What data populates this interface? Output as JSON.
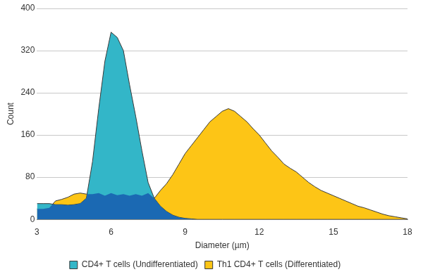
{
  "chart_data": {
    "type": "area",
    "x_label": "Diameter (µm)",
    "y_label": "Count",
    "x": [
      3,
      3.25,
      3.5,
      3.75,
      4,
      4.25,
      4.5,
      4.75,
      5,
      5.25,
      5.5,
      5.75,
      6,
      6.25,
      6.5,
      6.75,
      7,
      7.25,
      7.5,
      7.75,
      8,
      8.25,
      8.5,
      8.75,
      9,
      9.25,
      9.5,
      9.75,
      10,
      10.25,
      10.5,
      10.75,
      11,
      11.25,
      11.5,
      11.75,
      12,
      12.25,
      12.5,
      12.75,
      13,
      13.25,
      13.5,
      13.75,
      14,
      14.25,
      14.5,
      14.75,
      15,
      15.25,
      15.5,
      15.75,
      16,
      16.25,
      16.5,
      16.75,
      17,
      17.25,
      17.5,
      17.75,
      18
    ],
    "series": [
      {
        "name": "CD4+ T cells (Undifferentiated)",
        "color": "#33b6c8",
        "values": [
          30,
          30,
          30,
          28,
          28,
          27,
          28,
          30,
          40,
          110,
          210,
          300,
          355,
          345,
          320,
          255,
          195,
          130,
          70,
          40,
          25,
          15,
          8,
          4,
          2,
          1,
          0,
          0,
          0,
          0,
          0,
          0,
          0,
          0,
          0,
          0,
          0,
          0,
          0,
          0,
          0,
          0,
          0,
          0,
          0,
          0,
          0,
          0,
          0,
          0,
          0,
          0,
          0,
          0,
          0,
          0,
          0,
          0,
          0,
          0,
          0
        ]
      },
      {
        "name": "Th1 CD4+ T cells (Differentiated)",
        "color": "#fdc516",
        "values": [
          20,
          20,
          22,
          35,
          38,
          42,
          48,
          50,
          48,
          48,
          50,
          45,
          50,
          46,
          48,
          45,
          48,
          45,
          50,
          40,
          55,
          68,
          85,
          105,
          125,
          140,
          155,
          170,
          185,
          195,
          205,
          210,
          205,
          195,
          185,
          172,
          160,
          145,
          130,
          118,
          105,
          97,
          90,
          80,
          70,
          62,
          55,
          50,
          45,
          40,
          35,
          30,
          25,
          22,
          18,
          14,
          10,
          7,
          5,
          3,
          1
        ]
      }
    ],
    "xlim": [
      3,
      18
    ],
    "xticks": [
      3,
      6,
      9,
      12,
      15,
      18
    ],
    "ylim": [
      0,
      400
    ],
    "yticks": [
      0,
      80,
      160,
      240,
      320,
      400
    ],
    "grid": true,
    "legend": "bottom"
  }
}
